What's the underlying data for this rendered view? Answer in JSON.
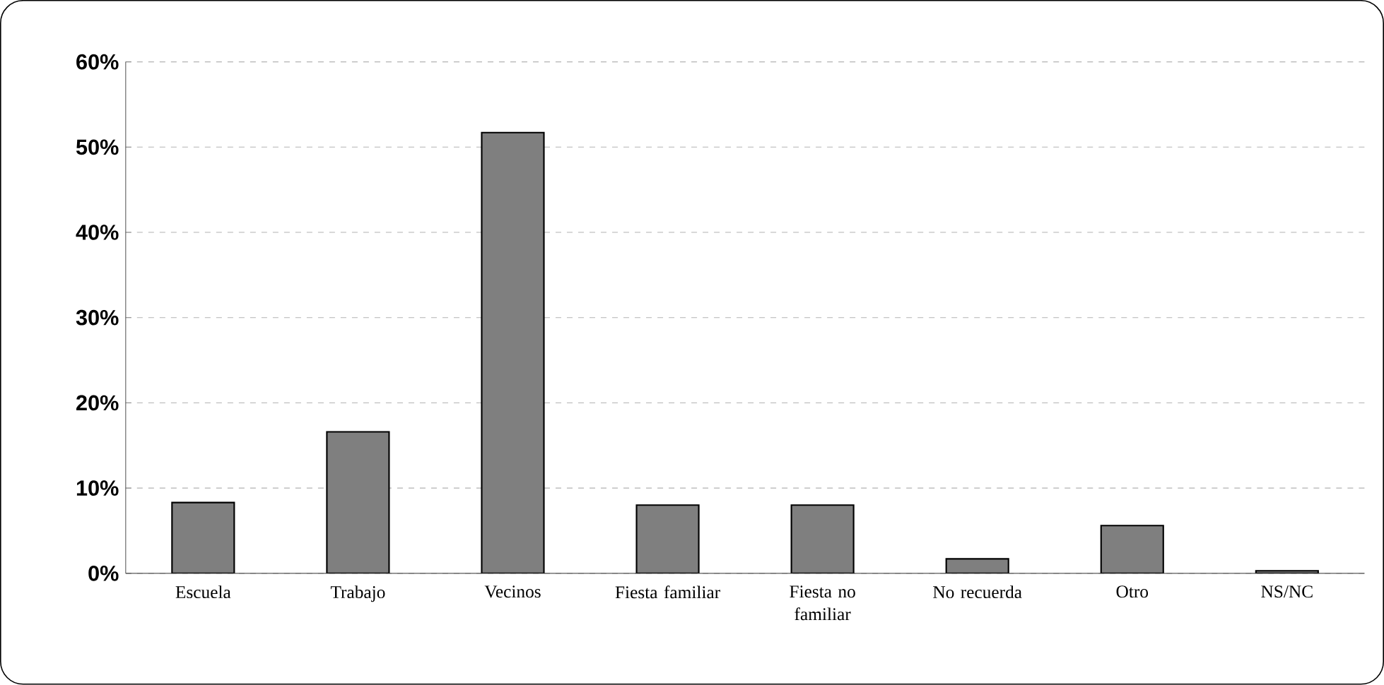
{
  "chart_data": {
    "type": "bar",
    "categories": [
      "Escuela",
      "Trabajo",
      "Vecinos",
      "Fiesta familiar",
      "Fiesta no familiar",
      "No recuerda",
      "Otro",
      "NS/NC"
    ],
    "values": [
      8.3,
      16.6,
      51.7,
      8.0,
      8.0,
      1.7,
      5.6,
      0.3
    ],
    "color": "#7f7f7f",
    "ylim": [
      0,
      60
    ],
    "yticks": [
      {
        "value": 0,
        "label": "0%"
      },
      {
        "value": 10,
        "label": "10%"
      },
      {
        "value": 20,
        "label": "20%"
      },
      {
        "value": 30,
        "label": "30%"
      },
      {
        "value": 40,
        "label": "40%"
      },
      {
        "value": 50,
        "label": "50%"
      },
      {
        "value": 60,
        "label": "60%"
      }
    ],
    "grid": "y"
  }
}
